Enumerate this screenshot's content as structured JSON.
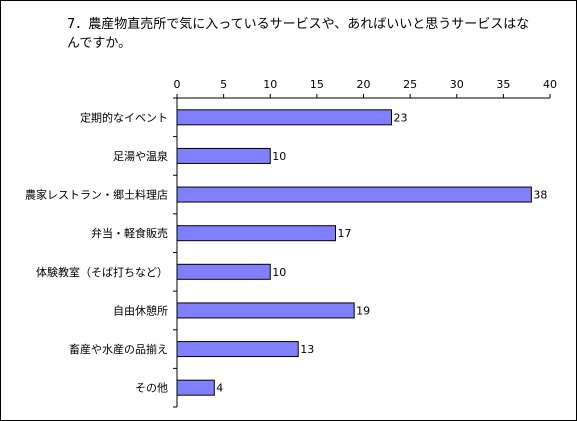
{
  "chart_data": {
    "type": "bar",
    "orientation": "horizontal",
    "title": "7．農産物直売所で気に入っているサービスや、あればいいと思うサービスはなんですか。",
    "categories": [
      "定期的なイベント",
      "足湯や温泉",
      "農家レストラン・郷土料理店",
      "弁当・軽食販売",
      "体験教室（そば打ちなど）",
      "自由休憩所",
      "畜産や水産の品揃え",
      "その他"
    ],
    "values": [
      23,
      10,
      38,
      17,
      10,
      19,
      13,
      4
    ],
    "xlim": [
      0,
      40
    ],
    "xticks": [
      0,
      5,
      10,
      15,
      20,
      25,
      30,
      35,
      40
    ],
    "xlabel": "",
    "ylabel": "",
    "grid": false,
    "legend": "none",
    "colors": {
      "bar_fill": "#8080ff",
      "bar_stroke": "#000000",
      "axis": "#000000"
    }
  }
}
